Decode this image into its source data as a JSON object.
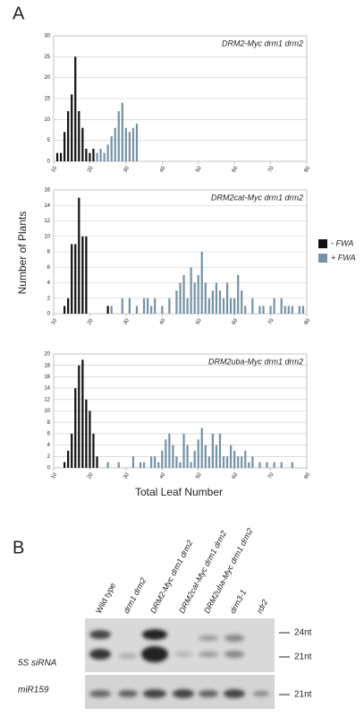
{
  "panel_a": "A",
  "y_label": "Number of Plants",
  "x_label": "Total Leaf Number",
  "chart_data": [
    {
      "type": "histogram",
      "title": "DRM2-Myc drm1 drm2",
      "xlim": [
        10,
        80
      ],
      "xticks": [
        10,
        20,
        30,
        40,
        50,
        60,
        70,
        80
      ],
      "ylim": [
        0,
        30
      ],
      "yticks": [
        0,
        5,
        10,
        15,
        20,
        25,
        30
      ],
      "grid": true,
      "series": [
        {
          "name": "- FWA",
          "color": "#111111",
          "x": [
            11,
            12,
            13,
            14,
            15,
            16,
            17,
            18,
            19,
            20,
            21
          ],
          "values": [
            2,
            2,
            7,
            12,
            16,
            25,
            12,
            8,
            3,
            2,
            3
          ]
        },
        {
          "name": "+ FWA",
          "color": "#7693a6",
          "x": [
            22,
            23,
            24,
            25,
            26,
            27,
            28,
            29,
            30,
            31,
            32,
            33
          ],
          "values": [
            2,
            3,
            2,
            4,
            6,
            8,
            12,
            14,
            8,
            7,
            8,
            9
          ]
        }
      ]
    },
    {
      "type": "histogram",
      "title": "DRM2cat-Myc drm1 drm2",
      "xlim": [
        10,
        80
      ],
      "xticks": [
        10,
        20,
        30,
        40,
        50,
        60,
        70,
        80
      ],
      "ylim": [
        0,
        16
      ],
      "yticks": [
        0,
        2,
        4,
        6,
        8,
        10,
        12,
        14,
        16
      ],
      "grid": true,
      "series": [
        {
          "name": "- FWA",
          "color": "#111111",
          "x": [
            13,
            14,
            15,
            16,
            17,
            18,
            19,
            25
          ],
          "values": [
            1,
            2,
            9,
            9,
            15,
            10,
            10,
            1
          ]
        },
        {
          "name": "+ FWA",
          "color": "#7693a6",
          "x": [
            26,
            29,
            31,
            33,
            35,
            36,
            37,
            38,
            40,
            42,
            44,
            45,
            46,
            47,
            48,
            49,
            50,
            51,
            52,
            53,
            54,
            55,
            56,
            57,
            58,
            59,
            60,
            61,
            62,
            63,
            65,
            67,
            68,
            70,
            71,
            73,
            74,
            75,
            76,
            78,
            79
          ],
          "values": [
            1,
            2,
            2,
            1,
            2,
            2,
            1,
            2,
            1,
            2,
            3,
            4,
            5,
            2,
            6,
            4,
            5,
            8,
            4,
            2,
            3,
            4,
            3,
            2,
            4,
            2,
            2,
            5,
            3,
            1,
            2,
            1,
            1,
            1,
            2,
            2,
            1,
            1,
            1,
            1,
            1
          ]
        }
      ]
    },
    {
      "type": "histogram",
      "title": "DRM2uba-Myc drm1 drm2",
      "xlim": [
        10,
        80
      ],
      "xticks": [
        10,
        20,
        30,
        40,
        50,
        60,
        70,
        80
      ],
      "ylim": [
        0,
        20
      ],
      "yticks": [
        0,
        2,
        4,
        6,
        8,
        10,
        12,
        14,
        16,
        18,
        20
      ],
      "grid": true,
      "series": [
        {
          "name": "- FWA",
          "color": "#111111",
          "x": [
            13,
            14,
            15,
            16,
            17,
            18,
            19,
            20,
            21,
            22
          ],
          "values": [
            1,
            3,
            6,
            14,
            18,
            19,
            12,
            10,
            6,
            2
          ]
        },
        {
          "name": "+ FWA",
          "color": "#7693a6",
          "x": [
            25,
            28,
            32,
            34,
            35,
            37,
            38,
            39,
            40,
            41,
            42,
            43,
            44,
            45,
            46,
            47,
            48,
            49,
            50,
            51,
            52,
            53,
            54,
            55,
            56,
            57,
            58,
            59,
            60,
            61,
            62,
            63,
            64,
            65,
            67,
            69,
            71,
            73,
            76
          ],
          "values": [
            1,
            1,
            2,
            1,
            1,
            2,
            2,
            1,
            3,
            5,
            6,
            4,
            2,
            1,
            6,
            4,
            1,
            3,
            5,
            7,
            4,
            2,
            6,
            4,
            6,
            2,
            2,
            4,
            3,
            2,
            2,
            3,
            1,
            2,
            1,
            1,
            1,
            1,
            1
          ]
        }
      ]
    }
  ],
  "blot": {
    "panel": "B",
    "lanes": [
      "Wild type",
      "drm1 drm2",
      "DRM2-Myc drm1 drm2",
      "DRM2cat-Myc drm1 drm2",
      "DRM2uba-Myc drm1 drm2",
      "drm3-1",
      "rdr2"
    ],
    "probes": [
      "5S siRNA",
      "miR159"
    ],
    "markers": [
      "24nt",
      "21nt",
      "21nt"
    ]
  }
}
